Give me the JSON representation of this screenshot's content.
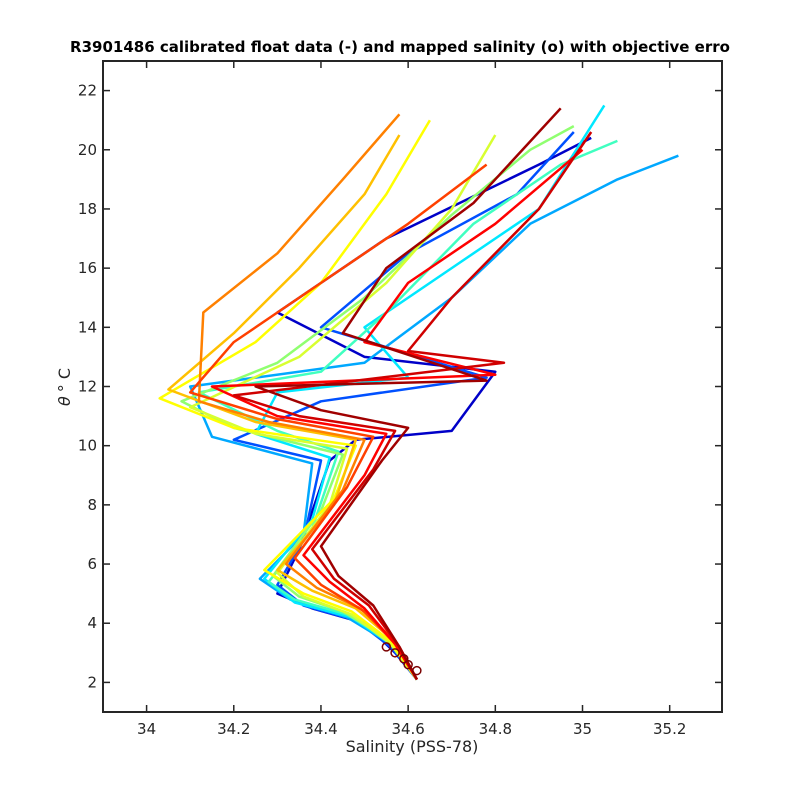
{
  "chart_data": {
    "type": "line",
    "title": "R3901486 calibrated float data (-) and mapped salinity (o) with objective erro",
    "xlabel": "Salinity (PSS-78)",
    "ylabel_symbol": "θ",
    "ylabel_unit": "° C",
    "xlim": [
      33.9,
      35.32
    ],
    "ylim": [
      1,
      23
    ],
    "xticks": [
      "34",
      "34.2",
      "34.4",
      "34.6",
      "34.8",
      "35",
      "35.2"
    ],
    "yticks": [
      "2",
      "4",
      "6",
      "8",
      "10",
      "12",
      "14",
      "16",
      "18",
      "20",
      "22"
    ],
    "grid": false,
    "colormap": "jet (profile index, blue = early, dark red = late)",
    "colors": [
      "#0000c8",
      "#0050ff",
      "#00a8ff",
      "#00e8ff",
      "#40ffc0",
      "#90ff70",
      "#d8ff30",
      "#ffff00",
      "#ffc000",
      "#ff8000",
      "#ff4000",
      "#ff0000",
      "#d00000",
      "#a00000"
    ],
    "series": [
      {
        "values": [
          [
            34.62,
            2.1
          ],
          [
            34.57,
            3.0
          ],
          [
            34.5,
            4.0
          ],
          [
            34.38,
            4.5
          ],
          [
            34.3,
            5.0
          ],
          [
            34.35,
            6.5
          ],
          [
            34.42,
            9.5
          ],
          [
            34.48,
            10.2
          ],
          [
            34.7,
            10.5
          ],
          [
            34.8,
            12.5
          ],
          [
            34.5,
            13.0
          ],
          [
            34.3,
            14.5
          ],
          [
            34.55,
            17.0
          ],
          [
            34.9,
            19.5
          ],
          [
            35.02,
            20.4
          ]
        ]
      },
      {
        "values": [
          [
            34.62,
            2.1
          ],
          [
            34.56,
            3.2
          ],
          [
            34.48,
            4.1
          ],
          [
            34.36,
            4.6
          ],
          [
            34.3,
            5.3
          ],
          [
            34.36,
            6.8
          ],
          [
            34.4,
            9.5
          ],
          [
            34.2,
            10.2
          ],
          [
            34.4,
            11.5
          ],
          [
            34.78,
            12.3
          ],
          [
            34.4,
            14.0
          ],
          [
            34.6,
            16.5
          ],
          [
            34.85,
            18.5
          ],
          [
            34.98,
            20.6
          ]
        ]
      },
      {
        "values": [
          [
            34.62,
            2.1
          ],
          [
            34.56,
            3.3
          ],
          [
            34.46,
            4.2
          ],
          [
            34.33,
            4.8
          ],
          [
            34.26,
            5.5
          ],
          [
            34.36,
            7.0
          ],
          [
            34.38,
            9.4
          ],
          [
            34.15,
            10.3
          ],
          [
            34.1,
            12.0
          ],
          [
            34.5,
            12.8
          ],
          [
            34.7,
            15.0
          ],
          [
            34.88,
            17.5
          ],
          [
            35.08,
            19.0
          ],
          [
            35.22,
            19.8
          ]
        ]
      },
      {
        "values": [
          [
            34.62,
            2.1
          ],
          [
            34.57,
            3.2
          ],
          [
            34.47,
            4.2
          ],
          [
            34.34,
            4.7
          ],
          [
            34.27,
            5.5
          ],
          [
            34.38,
            7.5
          ],
          [
            34.42,
            9.6
          ],
          [
            34.25,
            10.4
          ],
          [
            34.3,
            11.8
          ],
          [
            34.6,
            12.3
          ],
          [
            34.5,
            14.0
          ],
          [
            34.7,
            16.0
          ],
          [
            34.9,
            18.0
          ],
          [
            35.05,
            21.5
          ]
        ]
      },
      {
        "values": [
          [
            34.62,
            2.1
          ],
          [
            34.56,
            3.4
          ],
          [
            34.46,
            4.3
          ],
          [
            34.34,
            4.8
          ],
          [
            34.28,
            5.4
          ],
          [
            34.38,
            7.2
          ],
          [
            34.44,
            9.8
          ],
          [
            34.3,
            10.5
          ],
          [
            34.12,
            11.8
          ],
          [
            34.4,
            12.5
          ],
          [
            34.55,
            14.5
          ],
          [
            34.75,
            17.5
          ],
          [
            34.95,
            19.5
          ],
          [
            35.08,
            20.3
          ]
        ]
      },
      {
        "values": [
          [
            34.62,
            2.1
          ],
          [
            34.55,
            3.5
          ],
          [
            34.45,
            4.4
          ],
          [
            34.35,
            4.9
          ],
          [
            34.29,
            5.6
          ],
          [
            34.4,
            7.8
          ],
          [
            34.45,
            9.7
          ],
          [
            34.2,
            10.6
          ],
          [
            34.08,
            11.5
          ],
          [
            34.3,
            12.8
          ],
          [
            34.5,
            15.0
          ],
          [
            34.7,
            17.8
          ],
          [
            34.88,
            20.0
          ],
          [
            34.98,
            20.8
          ]
        ]
      },
      {
        "values": [
          [
            34.62,
            2.1
          ],
          [
            34.56,
            3.3
          ],
          [
            34.47,
            4.3
          ],
          [
            34.36,
            4.9
          ],
          [
            34.3,
            5.7
          ],
          [
            34.42,
            8.0
          ],
          [
            34.46,
            9.9
          ],
          [
            34.25,
            10.4
          ],
          [
            34.1,
            11.3
          ],
          [
            34.35,
            13.0
          ],
          [
            34.55,
            15.5
          ],
          [
            34.7,
            18.0
          ],
          [
            34.8,
            20.5
          ]
        ]
      },
      {
        "values": [
          [
            34.62,
            2.1
          ],
          [
            34.56,
            3.4
          ],
          [
            34.47,
            4.4
          ],
          [
            34.36,
            5.0
          ],
          [
            34.27,
            5.8
          ],
          [
            34.43,
            8.2
          ],
          [
            34.48,
            10.0
          ],
          [
            34.2,
            10.6
          ],
          [
            34.03,
            11.6
          ],
          [
            34.25,
            13.5
          ],
          [
            34.4,
            15.5
          ],
          [
            34.55,
            18.5
          ],
          [
            34.65,
            21.0
          ]
        ]
      },
      {
        "values": [
          [
            34.62,
            2.1
          ],
          [
            34.56,
            3.5
          ],
          [
            34.48,
            4.5
          ],
          [
            34.38,
            5.1
          ],
          [
            34.3,
            5.8
          ],
          [
            34.43,
            8.0
          ],
          [
            34.48,
            10.2
          ],
          [
            34.25,
            10.8
          ],
          [
            34.05,
            11.9
          ],
          [
            34.2,
            13.8
          ],
          [
            34.35,
            16.0
          ],
          [
            34.5,
            18.5
          ],
          [
            34.58,
            20.5
          ]
        ]
      },
      {
        "values": [
          [
            34.62,
            2.1
          ],
          [
            34.57,
            3.4
          ],
          [
            34.49,
            4.5
          ],
          [
            34.39,
            5.2
          ],
          [
            34.32,
            6.0
          ],
          [
            34.45,
            8.5
          ],
          [
            34.5,
            10.2
          ],
          [
            34.28,
            10.8
          ],
          [
            34.12,
            11.5
          ],
          [
            34.13,
            14.5
          ],
          [
            34.3,
            16.5
          ],
          [
            34.45,
            19.0
          ],
          [
            34.58,
            21.2
          ]
        ]
      },
      {
        "values": [
          [
            34.62,
            2.1
          ],
          [
            34.57,
            3.3
          ],
          [
            34.5,
            4.4
          ],
          [
            34.4,
            5.3
          ],
          [
            34.34,
            6.2
          ],
          [
            34.46,
            8.6
          ],
          [
            34.52,
            10.3
          ],
          [
            34.3,
            10.9
          ],
          [
            34.1,
            11.8
          ],
          [
            34.2,
            13.5
          ],
          [
            34.4,
            15.5
          ],
          [
            34.6,
            17.5
          ],
          [
            34.78,
            19.5
          ]
        ]
      },
      {
        "values": [
          [
            34.62,
            2.1
          ],
          [
            34.57,
            3.3
          ],
          [
            34.5,
            4.5
          ],
          [
            34.42,
            5.4
          ],
          [
            34.36,
            6.3
          ],
          [
            34.5,
            9.0
          ],
          [
            34.55,
            10.4
          ],
          [
            34.3,
            11.0
          ],
          [
            34.15,
            12.0
          ],
          [
            34.8,
            12.4
          ],
          [
            34.5,
            13.5
          ],
          [
            34.6,
            15.5
          ],
          [
            34.8,
            17.5
          ],
          [
            35.0,
            20.0
          ]
        ]
      },
      {
        "values": [
          [
            34.62,
            2.1
          ],
          [
            34.58,
            3.2
          ],
          [
            34.51,
            4.6
          ],
          [
            34.43,
            5.5
          ],
          [
            34.38,
            6.5
          ],
          [
            34.52,
            9.2
          ],
          [
            34.57,
            10.5
          ],
          [
            34.35,
            11.0
          ],
          [
            34.2,
            11.7
          ],
          [
            34.82,
            12.8
          ],
          [
            34.6,
            13.2
          ],
          [
            34.7,
            15.0
          ],
          [
            34.9,
            18.0
          ],
          [
            35.02,
            20.6
          ]
        ]
      },
      {
        "values": [
          [
            34.62,
            2.1
          ],
          [
            34.58,
            3.2
          ],
          [
            34.52,
            4.6
          ],
          [
            34.44,
            5.6
          ],
          [
            34.4,
            6.6
          ],
          [
            34.54,
            9.5
          ],
          [
            34.6,
            10.6
          ],
          [
            34.4,
            11.2
          ],
          [
            34.25,
            12.0
          ],
          [
            34.78,
            12.2
          ],
          [
            34.45,
            13.8
          ],
          [
            34.55,
            16.0
          ],
          [
            34.75,
            18.2
          ],
          [
            34.95,
            21.4
          ]
        ]
      }
    ],
    "mapped_points": [
      [
        34.55,
        3.2
      ],
      [
        34.57,
        3.0
      ],
      [
        34.59,
        2.8
      ],
      [
        34.6,
        2.6
      ],
      [
        34.62,
        2.4
      ]
    ]
  }
}
